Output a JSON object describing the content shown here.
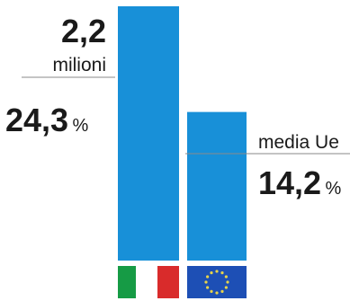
{
  "chart_data": {
    "type": "bar",
    "categories": [
      "Italia",
      "media Ue"
    ],
    "values": [
      24.3,
      14.2
    ],
    "ylim": [
      0,
      24.3
    ],
    "grid": false,
    "legend": "none",
    "bars": [
      {
        "id": "italy",
        "value": 24.3,
        "value_number": "24,3",
        "value_unit": "%",
        "count_number": "2,2",
        "count_unit": "milioni",
        "flag": "italy-flag-icon"
      },
      {
        "id": "eu",
        "value": 14.2,
        "value_number": "14,2",
        "value_unit": "%",
        "series_label": "media Ue",
        "flag": "eu-flag-icon"
      }
    ]
  },
  "colors": {
    "bar": "#1890d8",
    "bar_edge": "#0f78bd",
    "text": "#1a1a1a",
    "leader": "#8a8a8a",
    "italy_green": "#169b45",
    "italy_white": "#ffffff",
    "italy_red": "#d92b2b",
    "eu_blue": "#1d4fb5",
    "eu_star": "#e8d44a"
  }
}
